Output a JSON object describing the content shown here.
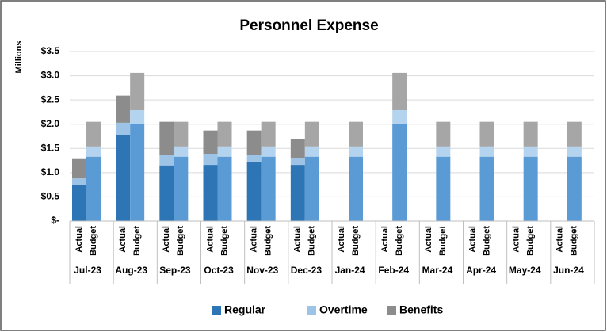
{
  "chart_data": {
    "type": "grouped_stacked_bar",
    "title": "Personnel Expense",
    "y_label": "Millions",
    "categories": [
      "Jul-23",
      "Aug-23",
      "Sep-23",
      "Oct-23",
      "Nov-23",
      "Dec-23",
      "Jan-24",
      "Feb-24",
      "Mar-24",
      "Apr-24",
      "May-24",
      "Jun-24"
    ],
    "subcategories": [
      "Actual",
      "Budget"
    ],
    "series": [
      {
        "name": "Regular",
        "color": "#2e75b6",
        "budget_color": "#5b9bd5",
        "values": [
          [
            0.74,
            1.33
          ],
          [
            1.78,
            2.0
          ],
          [
            1.15,
            1.33
          ],
          [
            1.16,
            1.33
          ],
          [
            1.23,
            1.33
          ],
          [
            1.16,
            1.33
          ],
          [
            null,
            1.33
          ],
          [
            null,
            2.0
          ],
          [
            null,
            1.33
          ],
          [
            null,
            1.33
          ],
          [
            null,
            1.33
          ],
          [
            null,
            1.33
          ]
        ]
      },
      {
        "name": "Overtime",
        "color": "#9dc3e6",
        "budget_color": "#b4d3ee",
        "values": [
          [
            0.14,
            0.21
          ],
          [
            0.25,
            0.29
          ],
          [
            0.22,
            0.21
          ],
          [
            0.23,
            0.21
          ],
          [
            0.14,
            0.21
          ],
          [
            0.13,
            0.21
          ],
          [
            null,
            0.21
          ],
          [
            null,
            0.29
          ],
          [
            null,
            0.21
          ],
          [
            null,
            0.21
          ],
          [
            null,
            0.21
          ],
          [
            null,
            0.21
          ]
        ]
      },
      {
        "name": "Benefits",
        "color": "#8c8c8c",
        "budget_color": "#a6a6a6",
        "values": [
          [
            0.4,
            0.51
          ],
          [
            0.56,
            0.77
          ],
          [
            0.68,
            0.51
          ],
          [
            0.48,
            0.51
          ],
          [
            0.5,
            0.51
          ],
          [
            0.41,
            0.51
          ],
          [
            null,
            0.51
          ],
          [
            null,
            0.77
          ],
          [
            null,
            0.51
          ],
          [
            null,
            0.51
          ],
          [
            null,
            0.51
          ],
          [
            null,
            0.51
          ]
        ]
      }
    ],
    "ylim": [
      0,
      3.5
    ],
    "yticks": [
      {
        "value": 0,
        "label": "$-"
      },
      {
        "value": 0.5,
        "label": "$0.5"
      },
      {
        "value": 1,
        "label": "$1.0"
      },
      {
        "value": 1.5,
        "label": "$1.5"
      },
      {
        "value": 2,
        "label": "$2.0"
      },
      {
        "value": 2.5,
        "label": "$2.5"
      },
      {
        "value": 3,
        "label": "$3.0"
      },
      {
        "value": 3.5,
        "label": "$3.5"
      }
    ],
    "grid": true,
    "legend": "bottom"
  }
}
